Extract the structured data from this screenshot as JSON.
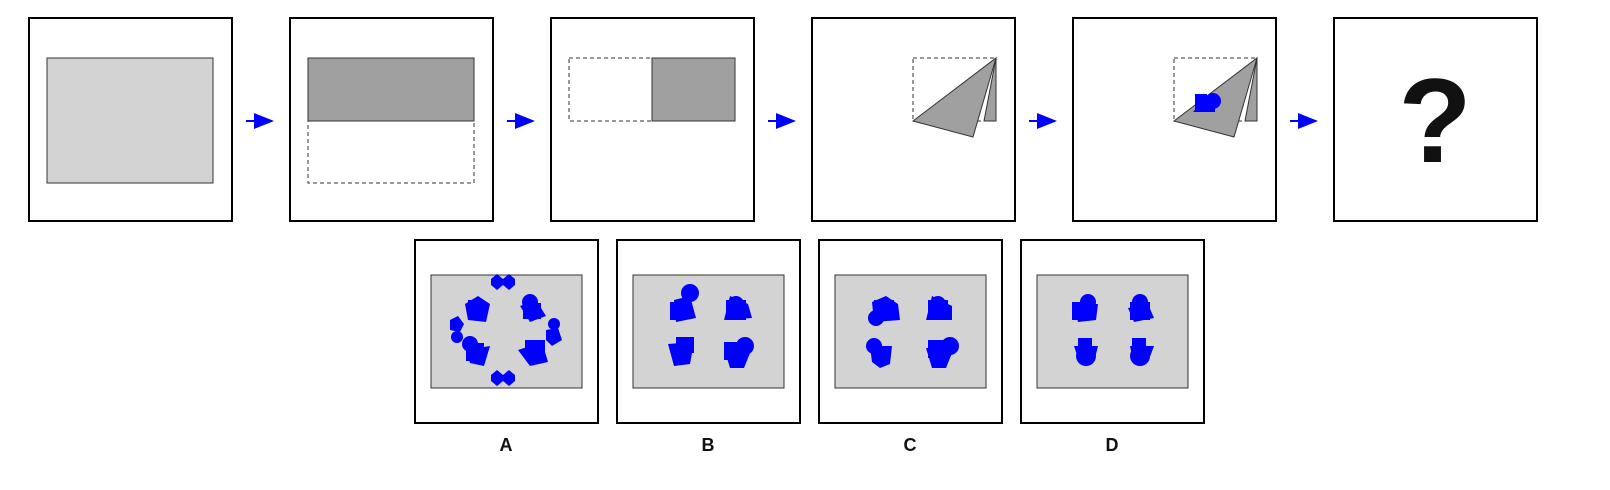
{
  "puzzle": {
    "question_mark": "?",
    "options": [
      {
        "label": "A"
      },
      {
        "label": "B"
      },
      {
        "label": "C"
      },
      {
        "label": "D"
      }
    ]
  },
  "colors": {
    "paper": "#d3d3d3",
    "folded_paper": "#a0a0a0",
    "hole": "#0000ff",
    "arrow": "#0000ff",
    "border": "#000000"
  },
  "icons": [
    "right-arrow-icon",
    "question-mark"
  ]
}
